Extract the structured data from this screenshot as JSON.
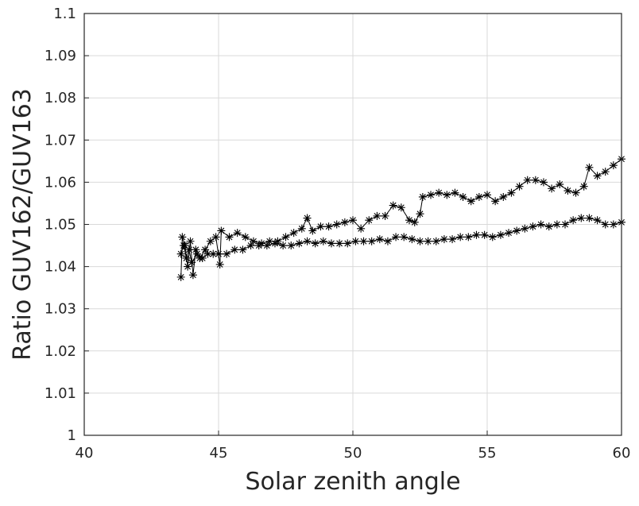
{
  "chart_data": {
    "type": "line",
    "title": "",
    "xlabel": "Solar zenith angle",
    "ylabel": "Ratio GUV162/GUV163",
    "xlim": [
      40,
      60
    ],
    "ylim": [
      1,
      1.1
    ],
    "xticks": [
      "40",
      "45",
      "50",
      "55",
      "60"
    ],
    "yticks": [
      "1",
      "1.01",
      "1.02",
      "1.03",
      "1.04",
      "1.05",
      "1.06",
      "1.07",
      "1.08",
      "1.09",
      "1.1"
    ],
    "grid": true,
    "marker": "asterisk",
    "line_color": "#000000",
    "series": [
      {
        "values": [
          [
            43.6,
            1.043
          ],
          [
            43.7,
            1.045
          ],
          [
            43.8,
            1.042
          ],
          [
            43.9,
            1.044
          ],
          [
            44.0,
            1.041
          ],
          [
            44.2,
            1.043
          ],
          [
            44.4,
            1.042
          ],
          [
            44.6,
            1.043
          ],
          [
            44.8,
            1.043
          ],
          [
            45.0,
            1.043
          ],
          [
            45.3,
            1.043
          ],
          [
            45.6,
            1.044
          ],
          [
            45.9,
            1.044
          ],
          [
            46.2,
            1.045
          ],
          [
            46.5,
            1.045
          ],
          [
            46.8,
            1.045
          ],
          [
            47.1,
            1.0455
          ],
          [
            47.4,
            1.045
          ],
          [
            47.7,
            1.045
          ],
          [
            48.0,
            1.0455
          ],
          [
            48.3,
            1.046
          ],
          [
            48.6,
            1.0455
          ],
          [
            48.9,
            1.046
          ],
          [
            49.2,
            1.0455
          ],
          [
            49.5,
            1.0455
          ],
          [
            49.8,
            1.0455
          ],
          [
            50.1,
            1.046
          ],
          [
            50.4,
            1.046
          ],
          [
            50.7,
            1.046
          ],
          [
            51.0,
            1.0465
          ],
          [
            51.3,
            1.046
          ],
          [
            51.6,
            1.047
          ],
          [
            51.9,
            1.047
          ],
          [
            52.2,
            1.0465
          ],
          [
            52.5,
            1.046
          ],
          [
            52.8,
            1.046
          ],
          [
            53.1,
            1.046
          ],
          [
            53.4,
            1.0465
          ],
          [
            53.7,
            1.0465
          ],
          [
            54.0,
            1.047
          ],
          [
            54.3,
            1.047
          ],
          [
            54.6,
            1.0475
          ],
          [
            54.9,
            1.0475
          ],
          [
            55.2,
            1.047
          ],
          [
            55.5,
            1.0475
          ],
          [
            55.8,
            1.048
          ],
          [
            56.1,
            1.0485
          ],
          [
            56.4,
            1.049
          ],
          [
            56.7,
            1.0495
          ],
          [
            57.0,
            1.05
          ],
          [
            57.3,
            1.0495
          ],
          [
            57.6,
            1.05
          ],
          [
            57.9,
            1.05
          ],
          [
            58.2,
            1.051
          ],
          [
            58.5,
            1.0515
          ],
          [
            58.8,
            1.0515
          ],
          [
            59.1,
            1.051
          ],
          [
            59.4,
            1.05
          ],
          [
            59.7,
            1.05
          ],
          [
            60.0,
            1.0505
          ]
        ]
      },
      {
        "values": [
          [
            43.6,
            1.0375
          ],
          [
            43.65,
            1.047
          ],
          [
            43.75,
            1.045
          ],
          [
            43.85,
            1.04
          ],
          [
            43.95,
            1.046
          ],
          [
            44.05,
            1.038
          ],
          [
            44.15,
            1.044
          ],
          [
            44.3,
            1.042
          ],
          [
            44.5,
            1.044
          ],
          [
            44.7,
            1.046
          ],
          [
            44.9,
            1.047
          ],
          [
            45.05,
            1.0405
          ],
          [
            45.1,
            1.0485
          ],
          [
            45.4,
            1.047
          ],
          [
            45.7,
            1.048
          ],
          [
            46.0,
            1.047
          ],
          [
            46.3,
            1.046
          ],
          [
            46.6,
            1.0455
          ],
          [
            46.9,
            1.046
          ],
          [
            47.2,
            1.046
          ],
          [
            47.5,
            1.047
          ],
          [
            47.8,
            1.048
          ],
          [
            48.1,
            1.049
          ],
          [
            48.3,
            1.0515
          ],
          [
            48.5,
            1.0485
          ],
          [
            48.8,
            1.0495
          ],
          [
            49.1,
            1.0495
          ],
          [
            49.4,
            1.05
          ],
          [
            49.7,
            1.0505
          ],
          [
            50.0,
            1.051
          ],
          [
            50.3,
            1.049
          ],
          [
            50.6,
            1.051
          ],
          [
            50.9,
            1.052
          ],
          [
            51.2,
            1.052
          ],
          [
            51.5,
            1.0545
          ],
          [
            51.8,
            1.054
          ],
          [
            52.1,
            1.051
          ],
          [
            52.3,
            1.0505
          ],
          [
            52.5,
            1.0525
          ],
          [
            52.6,
            1.0565
          ],
          [
            52.9,
            1.057
          ],
          [
            53.2,
            1.0575
          ],
          [
            53.5,
            1.057
          ],
          [
            53.8,
            1.0575
          ],
          [
            54.1,
            1.0565
          ],
          [
            54.4,
            1.0555
          ],
          [
            54.7,
            1.0565
          ],
          [
            55.0,
            1.057
          ],
          [
            55.3,
            1.0555
          ],
          [
            55.6,
            1.0565
          ],
          [
            55.9,
            1.0575
          ],
          [
            56.2,
            1.059
          ],
          [
            56.5,
            1.0605
          ],
          [
            56.8,
            1.0605
          ],
          [
            57.1,
            1.06
          ],
          [
            57.4,
            1.0585
          ],
          [
            57.7,
            1.0595
          ],
          [
            58.0,
            1.058
          ],
          [
            58.3,
            1.0575
          ],
          [
            58.6,
            1.059
          ],
          [
            58.8,
            1.0635
          ],
          [
            59.1,
            1.0615
          ],
          [
            59.4,
            1.0625
          ],
          [
            59.7,
            1.064
          ],
          [
            60.0,
            1.0655
          ]
        ]
      }
    ]
  }
}
